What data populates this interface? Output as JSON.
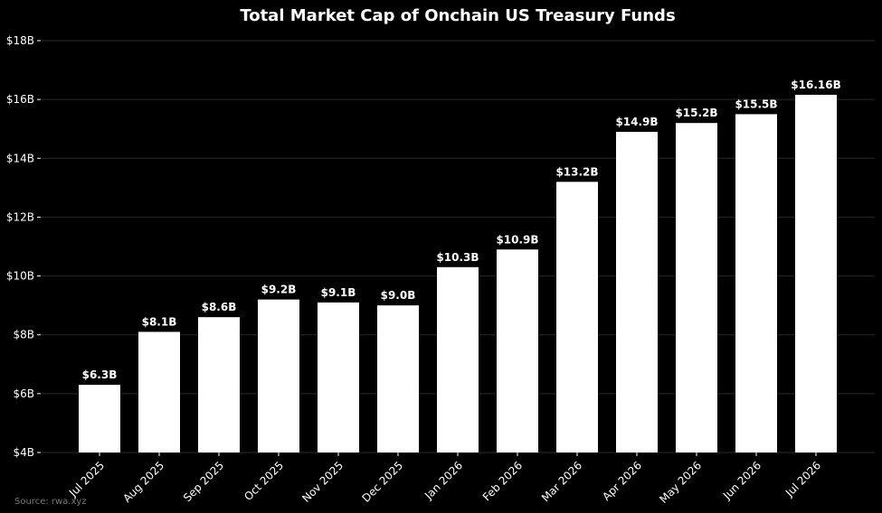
{
  "chart_data": {
    "type": "bar",
    "title": "Total Market Cap of Onchain US Treasury Funds",
    "xlabel": "",
    "ylabel": "",
    "categories": [
      "Jul 2025",
      "Aug 2025",
      "Sep 2025",
      "Oct 2025",
      "Nov 2025",
      "Dec 2025",
      "Jan 2026",
      "Feb 2026",
      "Mar 2026",
      "Apr 2026",
      "May 2026",
      "Jun 2026",
      "Jul 2026"
    ],
    "values": [
      6.3,
      8.1,
      8.6,
      9.2,
      9.1,
      9.0,
      10.3,
      10.9,
      13.2,
      14.9,
      15.2,
      15.5,
      16.16
    ],
    "data_labels": [
      "$6.3B",
      "$8.1B",
      "$8.6B",
      "$9.2B",
      "$9.1B",
      "$9.0B",
      "$10.3B",
      "$10.9B",
      "$13.2B",
      "$14.9B",
      "$15.2B",
      "$15.5B",
      "$16.16B"
    ],
    "ylim": [
      4,
      18
    ],
    "yticks": [
      4,
      6,
      8,
      10,
      12,
      14,
      16,
      18
    ],
    "ytick_labels": [
      "$4B",
      "$6B",
      "$8B",
      "$10B",
      "$12B",
      "$14B",
      "$16B",
      "$18B"
    ],
    "grid": true,
    "legend": "none",
    "colors": {
      "background": "#000000",
      "bar": "#ffffff",
      "text": "#ffffff",
      "grid": "#2a2a2a",
      "source": "#777777"
    }
  },
  "source_note": "Source: rwa.xyz"
}
